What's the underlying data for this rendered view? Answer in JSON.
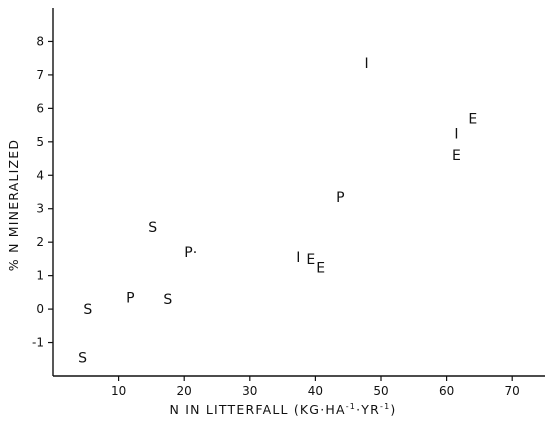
{
  "chart_data": {
    "type": "scatter",
    "xlabel": "N IN LITTERFALL (KG·HA⁻¹·YR⁻¹)",
    "ylabel": "% N MINERALIZED",
    "xlabel_parts": {
      "prefix": "N IN LITTERFALL (KG·HA",
      "sup1": "-1",
      "middle": "·YR",
      "sup2": "-1",
      "suffix": ")"
    },
    "xlim": [
      0,
      75
    ],
    "ylim": [
      -2,
      9
    ],
    "xticks": [
      10,
      20,
      30,
      40,
      50,
      60,
      70
    ],
    "yticks": [
      -1,
      0,
      1,
      2,
      3,
      4,
      5,
      6,
      7,
      8
    ],
    "points": [
      {
        "label": "S",
        "x": 4.5,
        "y": -1.45
      },
      {
        "label": "S",
        "x": 5.3,
        "y": 0.0
      },
      {
        "label": "P",
        "x": 11.8,
        "y": 0.35
      },
      {
        "label": "S",
        "x": 17.5,
        "y": 0.3
      },
      {
        "label": "S",
        "x": 15.2,
        "y": 2.45
      },
      {
        "label": "P·",
        "x": 21.0,
        "y": 1.7
      },
      {
        "label": "I",
        "x": 37.4,
        "y": 1.55
      },
      {
        "label": "E",
        "x": 39.3,
        "y": 1.5
      },
      {
        "label": "E",
        "x": 40.8,
        "y": 1.25
      },
      {
        "label": "P",
        "x": 43.8,
        "y": 3.35
      },
      {
        "label": "I",
        "x": 47.8,
        "y": 7.35
      },
      {
        "label": "I",
        "x": 61.5,
        "y": 5.25
      },
      {
        "label": "E",
        "x": 61.5,
        "y": 4.6
      },
      {
        "label": "E",
        "x": 64.0,
        "y": 5.7
      }
    ]
  }
}
